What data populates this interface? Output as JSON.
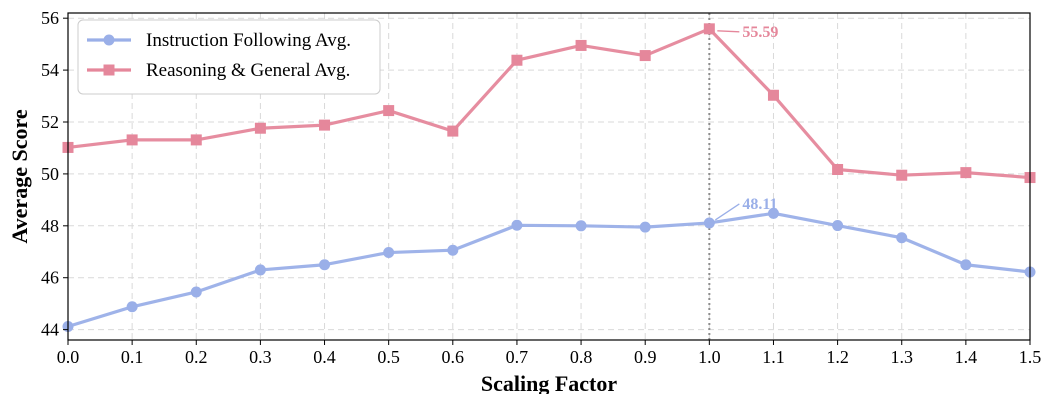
{
  "chart_data": {
    "type": "line",
    "xlabel": "Scaling Factor",
    "ylabel": "Average Score",
    "xlim": [
      0.0,
      1.5
    ],
    "ylim": [
      43.6,
      56.2
    ],
    "x_ticks": [
      "0.0",
      "0.1",
      "0.2",
      "0.3",
      "0.4",
      "0.5",
      "0.6",
      "0.7",
      "0.8",
      "0.9",
      "1.0",
      "1.1",
      "1.2",
      "1.3",
      "1.4",
      "1.5"
    ],
    "y_ticks": [
      "44",
      "46",
      "48",
      "50",
      "52",
      "54",
      "56"
    ],
    "grid": true,
    "legend_position": "top-left",
    "x": [
      0.0,
      0.1,
      0.2,
      0.3,
      0.4,
      0.5,
      0.6,
      0.7,
      0.8,
      0.9,
      1.0,
      1.1,
      1.2,
      1.3,
      1.4,
      1.5
    ],
    "series": [
      {
        "name": "Instruction Following Avg.",
        "marker": "circle",
        "color": "#9AAFE8",
        "values": [
          44.12,
          44.88,
          45.45,
          46.3,
          46.5,
          46.97,
          47.06,
          48.02,
          48.0,
          47.95,
          48.11,
          48.48,
          48.01,
          47.54,
          46.5,
          46.22
        ]
      },
      {
        "name": "Reasoning & General Avg.",
        "marker": "square",
        "color": "#E5879B",
        "values": [
          51.02,
          51.31,
          51.31,
          51.76,
          51.88,
          52.44,
          51.65,
          54.38,
          54.95,
          54.56,
          55.59,
          53.03,
          50.17,
          49.95,
          50.05,
          49.86
        ]
      }
    ],
    "vline": {
      "x": 1.0
    },
    "annotations": [
      {
        "text": "55.59",
        "x": 1.0,
        "y": 55.59,
        "series": 1
      },
      {
        "text": "48.11",
        "x": 1.0,
        "y": 48.11,
        "series": 0
      }
    ]
  }
}
